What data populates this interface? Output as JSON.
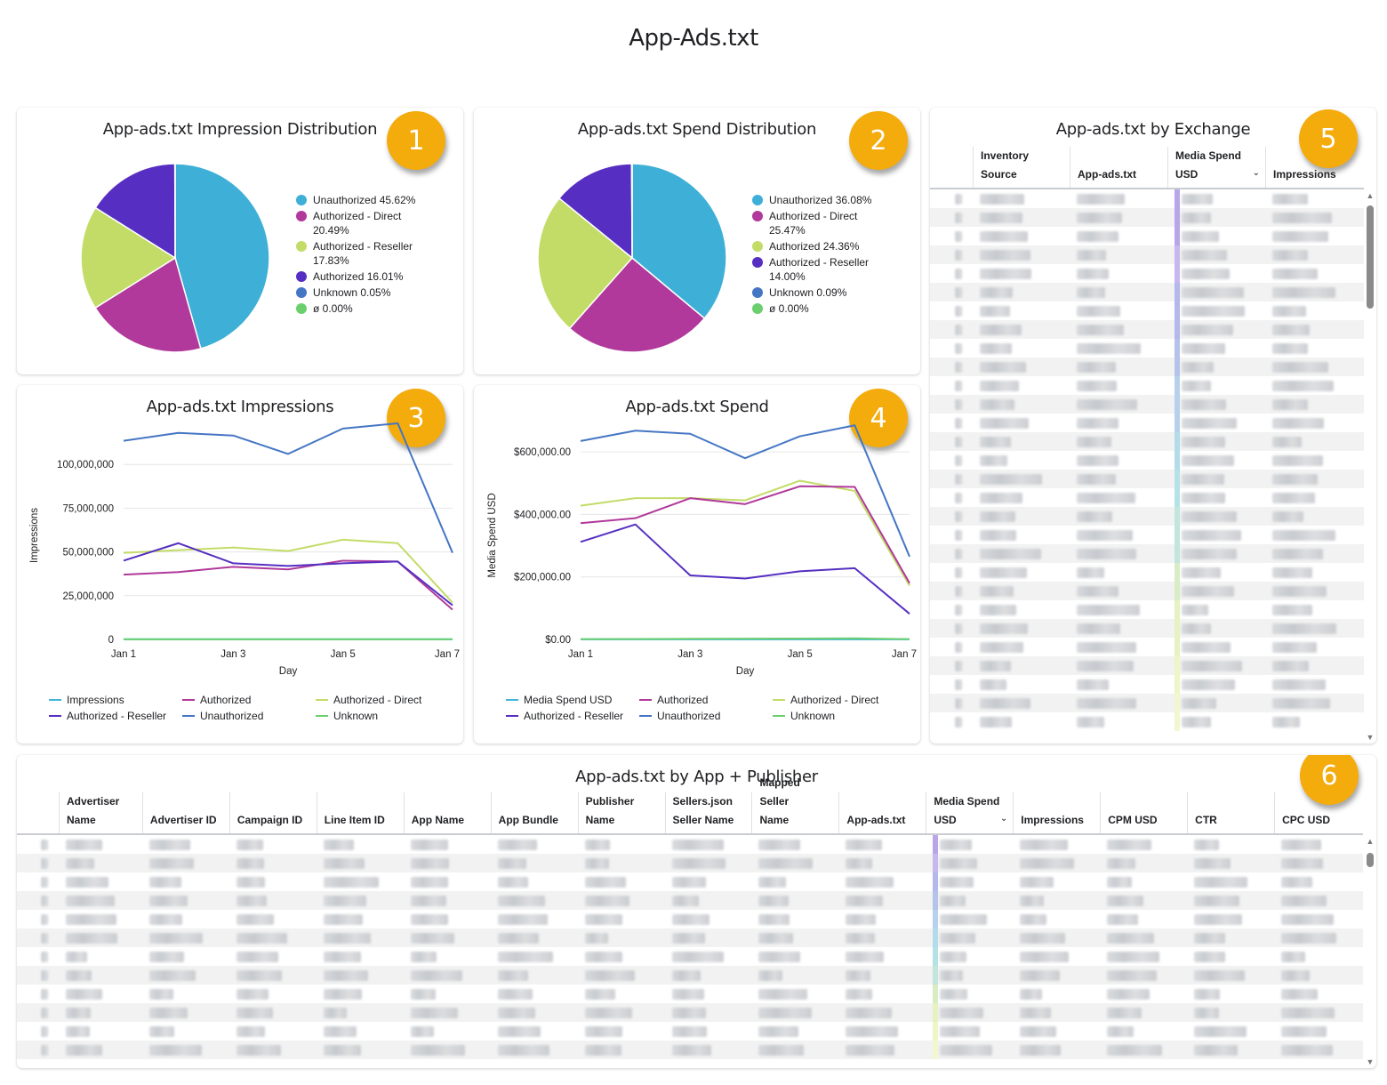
{
  "page": {
    "title": "App-Ads.txt"
  },
  "colors": {
    "unauthorized_pie": "#3eafd6",
    "authorized_direct_pie": "#b0399b",
    "reseller_green": "#c2dc67",
    "purple": "#562fc2",
    "unknown": "#4576c4",
    "null": "#6ccf6e",
    "impressions_line": "#3eb6d9",
    "authorized_line": "#b0399b",
    "direct_line": "#c2dc67",
    "reseller_line": "#562fc2",
    "unauthorized_line": "#4576c4",
    "unknown_line": "#6ccf6e",
    "badge": "#f4ab0c"
  },
  "chart_data": [
    {
      "id": "impression-distribution",
      "type": "pie",
      "title": "App-ads.txt Impression Distribution",
      "badge": "1",
      "legend_position": "right",
      "slices": [
        {
          "label": "Unauthorized",
          "value": 45.62,
          "display": "Unauthorized 45.62%",
          "color": "#3eafd6"
        },
        {
          "label": "Authorized - Direct",
          "value": 20.49,
          "display": "Authorized - Direct 20.49%",
          "color": "#b0399b"
        },
        {
          "label": "Authorized - Reseller",
          "value": 17.83,
          "display": "Authorized - Reseller 17.83%",
          "color": "#c2dc67"
        },
        {
          "label": "Authorized",
          "value": 16.01,
          "display": "Authorized 16.01%",
          "color": "#562fc2"
        },
        {
          "label": "Unknown",
          "value": 0.05,
          "display": "Unknown 0.05%",
          "color": "#4576c4"
        },
        {
          "label": "ø",
          "value": 0.0,
          "display": "ø 0.00%",
          "color": "#6ccf6e"
        }
      ]
    },
    {
      "id": "spend-distribution",
      "type": "pie",
      "title": "App-ads.txt Spend Distribution",
      "badge": "2",
      "legend_position": "right",
      "slices": [
        {
          "label": "Unauthorized",
          "value": 36.08,
          "display": "Unauthorized 36.08%",
          "color": "#3eafd6"
        },
        {
          "label": "Authorized - Direct",
          "value": 25.47,
          "display": "Authorized - Direct 25.47%",
          "color": "#b0399b"
        },
        {
          "label": "Authorized",
          "value": 24.36,
          "display": "Authorized 24.36%",
          "color": "#c2dc67"
        },
        {
          "label": "Authorized - Reseller",
          "value": 14.0,
          "display": "Authorized - Reseller 14.00%",
          "color": "#562fc2"
        },
        {
          "label": "Unknown",
          "value": 0.09,
          "display": "Unknown 0.09%",
          "color": "#4576c4"
        },
        {
          "label": "ø",
          "value": 0.0,
          "display": "ø 0.00%",
          "color": "#6ccf6e"
        }
      ]
    },
    {
      "id": "impressions-line",
      "type": "line",
      "title": "App-ads.txt Impressions",
      "badge": "3",
      "xlabel": "Day",
      "ylabel": "Impressions",
      "x": [
        "Jan 1",
        "Jan 2",
        "Jan 3",
        "Jan 4",
        "Jan 5",
        "Jan 6",
        "Jan 7"
      ],
      "x_tick_labels": [
        "Jan 1",
        "",
        "Jan 3",
        "",
        "Jan 5",
        "",
        "Jan 7"
      ],
      "ylim": [
        0,
        125000000
      ],
      "y_ticks": [
        0,
        25000000,
        50000000,
        75000000,
        100000000
      ],
      "y_tick_labels": [
        "0",
        "25,000,000",
        "50,000,000",
        "75,000,000",
        "100,000,000"
      ],
      "grid": true,
      "legend_position": "bottom",
      "series": [
        {
          "name": "Impressions",
          "color": "#3eb6d9",
          "values": [
            100000,
            100000,
            100000,
            100000,
            100000,
            100000,
            100000
          ]
        },
        {
          "name": "Authorized",
          "color": "#b0399b",
          "values": [
            37000000,
            38500000,
            41500000,
            40000000,
            45000000,
            44500000,
            17000000
          ]
        },
        {
          "name": "Authorized - Direct",
          "color": "#c2dc67",
          "values": [
            49500000,
            51000000,
            52500000,
            50500000,
            57000000,
            55000000,
            21000000
          ]
        },
        {
          "name": "Authorized - Reseller",
          "color": "#562fc2",
          "values": [
            45000000,
            55000000,
            43500000,
            42000000,
            43500000,
            44500000,
            19500000
          ]
        },
        {
          "name": "Unauthorized",
          "color": "#4576c4",
          "values": [
            113500000,
            118000000,
            116500000,
            106000000,
            120500000,
            123500000,
            49500000
          ]
        },
        {
          "name": "Unknown",
          "color": "#6ccf6e",
          "values": [
            50000,
            50000,
            50000,
            50000,
            50000,
            50000,
            50000
          ]
        }
      ]
    },
    {
      "id": "spend-line",
      "type": "line",
      "title": "App-ads.txt Spend",
      "badge": "4",
      "xlabel": "Day",
      "ylabel": "Media Spend USD",
      "x": [
        "Jan 1",
        "Jan 2",
        "Jan 3",
        "Jan 4",
        "Jan 5",
        "Jan 6",
        "Jan 7"
      ],
      "x_tick_labels": [
        "Jan 1",
        "",
        "Jan 3",
        "",
        "Jan 5",
        "",
        "Jan 7"
      ],
      "ylim": [
        0,
        700000
      ],
      "y_ticks": [
        0,
        200000,
        400000,
        600000
      ],
      "y_tick_labels": [
        "$0.00",
        "$200,000.00",
        "$400,000.00",
        "$600,000.00"
      ],
      "grid": true,
      "legend_position": "bottom",
      "series": [
        {
          "name": "Media Spend USD",
          "color": "#3eb6d9",
          "values": [
            500,
            500,
            500,
            500,
            500,
            500,
            500
          ]
        },
        {
          "name": "Authorized",
          "color": "#b0399b",
          "values": [
            372000,
            388000,
            452000,
            433000,
            490000,
            488000,
            180000
          ]
        },
        {
          "name": "Authorized - Direct",
          "color": "#c2dc67",
          "values": [
            428000,
            452000,
            452000,
            445000,
            508000,
            475000,
            172000
          ]
        },
        {
          "name": "Authorized - Reseller",
          "color": "#562fc2",
          "values": [
            312000,
            368000,
            205000,
            195000,
            218000,
            228000,
            82000
          ]
        },
        {
          "name": "Unauthorized",
          "color": "#4576c4",
          "values": [
            635000,
            668000,
            658000,
            580000,
            650000,
            685000,
            265000
          ]
        },
        {
          "name": "Unknown",
          "color": "#6ccf6e",
          "values": [
            1000,
            1500,
            2000,
            2500,
            3000,
            3500,
            1000
          ]
        }
      ]
    }
  ],
  "exchange_table": {
    "title": "App-ads.txt by Exchange",
    "badge": "5",
    "columns": [
      {
        "label": "",
        "lines": [
          ""
        ]
      },
      {
        "label": "Inventory Source",
        "lines": [
          "Inventory Source"
        ]
      },
      {
        "label": "App-ads.txt",
        "lines": [
          "App-ads.txt"
        ]
      },
      {
        "label": "Media Spend USD",
        "lines": [
          "Media Spend",
          "USD"
        ],
        "sorted": true
      },
      {
        "label": "Impressions",
        "lines": [
          "Impressions"
        ]
      }
    ],
    "sort_icon": "chevron-down-icon",
    "row_count_visible": 29,
    "rows_redacted": true
  },
  "app_publisher_table": {
    "title": "App-ads.txt by App + Publisher",
    "badge": "6",
    "columns": [
      {
        "label": "",
        "lines": [
          ""
        ]
      },
      {
        "label": "Advertiser Name",
        "lines": [
          "Advertiser",
          "Name"
        ]
      },
      {
        "label": "Advertiser ID",
        "lines": [
          "Advertiser ID"
        ]
      },
      {
        "label": "Campaign ID",
        "lines": [
          "Campaign ID"
        ]
      },
      {
        "label": "Line Item ID",
        "lines": [
          "Line Item ID"
        ]
      },
      {
        "label": "App Name",
        "lines": [
          "App Name"
        ]
      },
      {
        "label": "App Bundle",
        "lines": [
          "App Bundle"
        ]
      },
      {
        "label": "Publisher Name",
        "lines": [
          "Publisher",
          "Name"
        ]
      },
      {
        "label": "Sellers.json Seller Name",
        "lines": [
          "Sellers.json",
          "Seller Name"
        ]
      },
      {
        "label": "Mapped Seller Name",
        "lines": [
          "Mapped Seller",
          "Name"
        ]
      },
      {
        "label": "App-ads.txt",
        "lines": [
          "App-ads.txt"
        ]
      },
      {
        "label": "Media Spend USD",
        "lines": [
          "Media Spend",
          "USD"
        ],
        "sorted": true
      },
      {
        "label": "Impressions",
        "lines": [
          "Impressions"
        ]
      },
      {
        "label": "CPM USD",
        "lines": [
          "CPM USD"
        ]
      },
      {
        "label": "CTR",
        "lines": [
          "CTR"
        ]
      },
      {
        "label": "CPC USD",
        "lines": [
          "CPC USD"
        ]
      }
    ],
    "sort_icon": "chevron-down-icon",
    "row_count_visible": 12,
    "rows_redacted": true
  }
}
